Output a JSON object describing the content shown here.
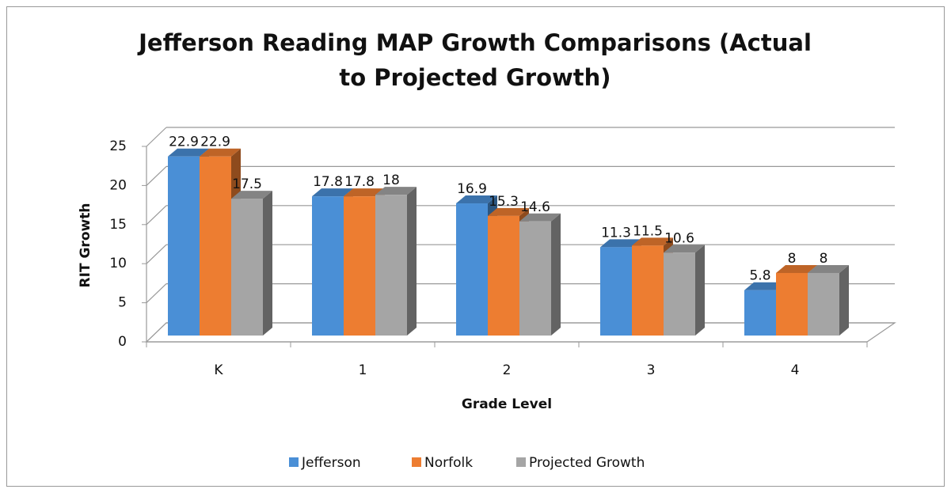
{
  "chart_data": {
    "type": "bar3d",
    "title": "Jefferson Reading MAP Growth Comparisons (Actual to Projected Growth)",
    "x_label": "Grade Level",
    "y_label": "RIT Growth",
    "categories": [
      "K",
      "1",
      "2",
      "3",
      "4"
    ],
    "series": [
      {
        "name": "Jefferson",
        "color": "#4a8fd6",
        "values": [
          22.9,
          17.8,
          16.9,
          11.3,
          5.8
        ]
      },
      {
        "name": "Norfolk",
        "color": "#ed7d31",
        "values": [
          22.9,
          17.8,
          15.3,
          11.5,
          8
        ]
      },
      {
        "name": "Projected Growth",
        "color": "#a5a5a5",
        "values": [
          17.5,
          18,
          14.6,
          10.6,
          8
        ]
      }
    ],
    "ylim": [
      0,
      25
    ],
    "yticks": [
      0,
      5,
      10,
      15,
      20,
      25
    ],
    "grid": true,
    "legend": "bottom"
  }
}
